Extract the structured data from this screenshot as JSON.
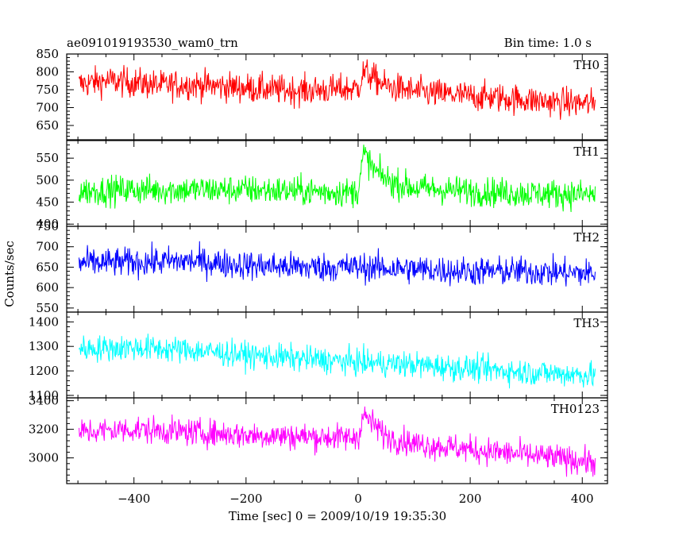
{
  "header": {
    "title": "ae091019193530_wam0_trn",
    "bin_time": "Bin time: 1.0 s"
  },
  "chart_data": {
    "type": "line",
    "title": "ae091019193530_wam0_trn",
    "xlabel": "Time [sec] 0 = 2009/10/19 19:35:30",
    "ylabel": "Counts/sec",
    "xlim": [
      -520,
      445
    ],
    "x_ticks": [
      -400,
      -200,
      0,
      200,
      400
    ],
    "x_tick_labels": [
      "−400",
      "−200",
      "0",
      "200",
      "400"
    ],
    "data_range": [
      -498,
      423
    ],
    "grid": false,
    "panels": [
      {
        "name": "TH0",
        "color": "#ff0000",
        "ylim": [
          610,
          850
        ],
        "y_ticks": [
          650,
          700,
          750,
          800,
          850
        ],
        "y_tick_labels": [
          "650",
          "700",
          "750",
          "800",
          "850"
        ],
        "x": [
          -500,
          -450,
          -400,
          -350,
          -300,
          -250,
          -200,
          -150,
          -100,
          -50,
          -10,
          0,
          10,
          50,
          100,
          150,
          200,
          250,
          300,
          350,
          400,
          423
        ],
        "y": [
          765,
          775,
          770,
          762,
          765,
          760,
          755,
          750,
          748,
          750,
          752,
          755,
          800,
          760,
          745,
          738,
          732,
          728,
          722,
          715,
          712,
          710
        ],
        "noise": 35
      },
      {
        "name": "TH1",
        "color": "#00ff00",
        "ylim": [
          395,
          590
        ],
        "y_ticks": [
          400,
          450,
          500,
          550
        ],
        "y_tick_labels": [
          "400",
          "450",
          "500",
          "550"
        ],
        "x": [
          -500,
          -400,
          -300,
          -200,
          -100,
          -10,
          0,
          10,
          30,
          60,
          100,
          200,
          300,
          400,
          423
        ],
        "y": [
          475,
          478,
          478,
          478,
          475,
          472,
          478,
          560,
          520,
          495,
          482,
          475,
          470,
          468,
          465
        ],
        "noise": 28
      },
      {
        "name": "TH2",
        "color": "#0000ff",
        "ylim": [
          540,
          750
        ],
        "y_ticks": [
          550,
          600,
          650,
          700,
          750
        ],
        "y_tick_labels": [
          "550",
          "600",
          "650",
          "700",
          "750"
        ],
        "x": [
          -500,
          -400,
          -300,
          -200,
          -100,
          0,
          100,
          200,
          300,
          400,
          423
        ],
        "y": [
          660,
          662,
          665,
          655,
          650,
          650,
          645,
          640,
          640,
          635,
          635
        ],
        "noise": 30
      },
      {
        "name": "TH3",
        "color": "#00ffff",
        "ylim": [
          1090,
          1440
        ],
        "y_ticks": [
          1100,
          1200,
          1300,
          1400
        ],
        "y_tick_labels": [
          "1100",
          "1200",
          "1300",
          "1400"
        ],
        "x": [
          -500,
          -400,
          -300,
          -200,
          -100,
          0,
          100,
          200,
          300,
          400,
          423
        ],
        "y": [
          1290,
          1295,
          1285,
          1265,
          1250,
          1235,
          1225,
          1210,
          1195,
          1185,
          1180
        ],
        "noise": 45
      },
      {
        "name": "TH0123",
        "color": "#ff00ff",
        "ylim": [
          2820,
          3420
        ],
        "y_ticks": [
          3000,
          3200,
          3400
        ],
        "y_tick_labels": [
          "3000",
          "3200",
          "3400"
        ],
        "x": [
          -500,
          -400,
          -300,
          -200,
          -100,
          -10,
          0,
          10,
          50,
          100,
          200,
          300,
          400,
          423
        ],
        "y": [
          3180,
          3200,
          3180,
          3160,
          3150,
          3140,
          3150,
          3300,
          3150,
          3100,
          3060,
          3020,
          2980,
          2970
        ],
        "noise": 80
      }
    ]
  }
}
